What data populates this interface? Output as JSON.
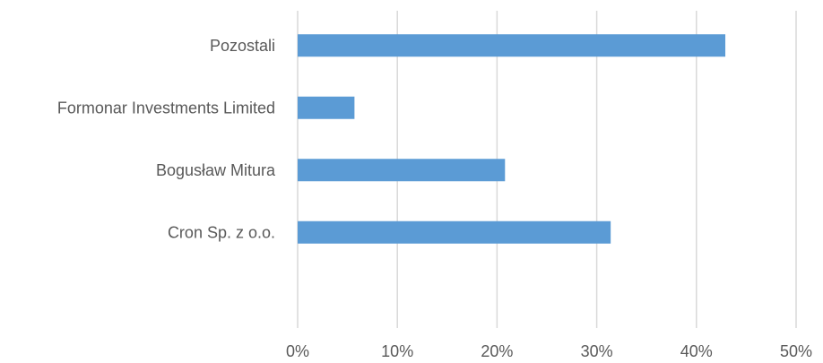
{
  "chart_data": {
    "type": "bar",
    "orientation": "horizontal",
    "categories": [
      "Pozostali",
      "Formonar Investments Limited",
      "Bogusław Mitura",
      "Cron Sp. z o.o."
    ],
    "values": [
      42.9,
      5.7,
      20.8,
      31.4
    ],
    "x_ticks": [
      "0%",
      "10%",
      "20%",
      "30%",
      "40%",
      "50%"
    ],
    "xlim": [
      0,
      50
    ],
    "grid": true,
    "colors": {
      "bar": "#5b9bd5",
      "grid": "#d9d9d9",
      "text": "#595959"
    }
  }
}
